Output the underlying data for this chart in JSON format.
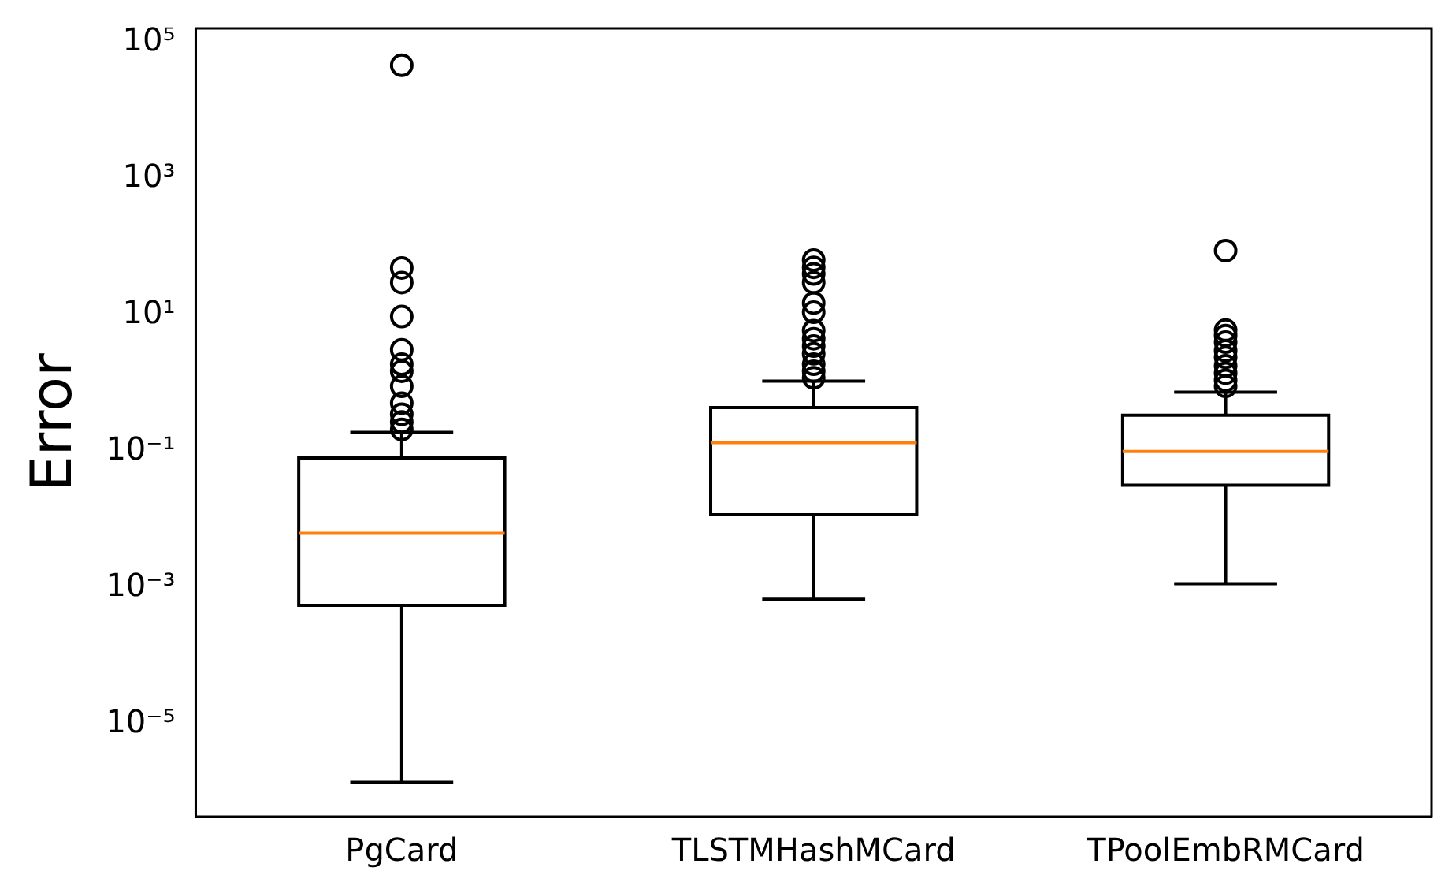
{
  "chart_data": {
    "type": "box",
    "ylabel": "Error",
    "categories": [
      "PgCard",
      "TLSTMHashMCard",
      "TPoolEmbRMCard"
    ],
    "boxes": [
      {
        "low": 1.4e-06,
        "q1": 0.00055,
        "median": 0.0063,
        "q3": 0.08,
        "high": 0.19,
        "outliers": [
          46000,
          49,
          30,
          9.5,
          3.1,
          1.9,
          1.5,
          0.9,
          0.51,
          0.35,
          0.27,
          0.21
        ]
      },
      {
        "low": 0.00068,
        "q1": 0.0118,
        "median": 0.135,
        "q3": 0.44,
        "high": 1.07,
        "outliers": [
          64,
          50,
          40,
          30,
          15,
          11,
          5.9,
          4.5,
          3.5,
          2.7,
          1.9,
          1.5,
          1.2
        ]
      },
      {
        "low": 0.00115,
        "q1": 0.032,
        "median": 0.1,
        "q3": 0.34,
        "high": 0.74,
        "outliers": [
          88,
          6,
          5,
          4,
          3,
          2.4,
          1.8,
          1.4,
          1.1,
          0.9
        ]
      }
    ],
    "log": true,
    "ylim": [
      4.4e-07,
      160000
    ],
    "yticks": [
      {
        "value": 1e-05,
        "label": "10⁻⁵"
      },
      {
        "value": 0.001,
        "label": "10⁻³"
      },
      {
        "value": 0.1,
        "label": "10⁻¹"
      },
      {
        "value": 10,
        "label": "10¹"
      },
      {
        "value": 1000,
        "label": "10³"
      },
      {
        "value": 100000,
        "label": "10⁵"
      }
    ]
  }
}
